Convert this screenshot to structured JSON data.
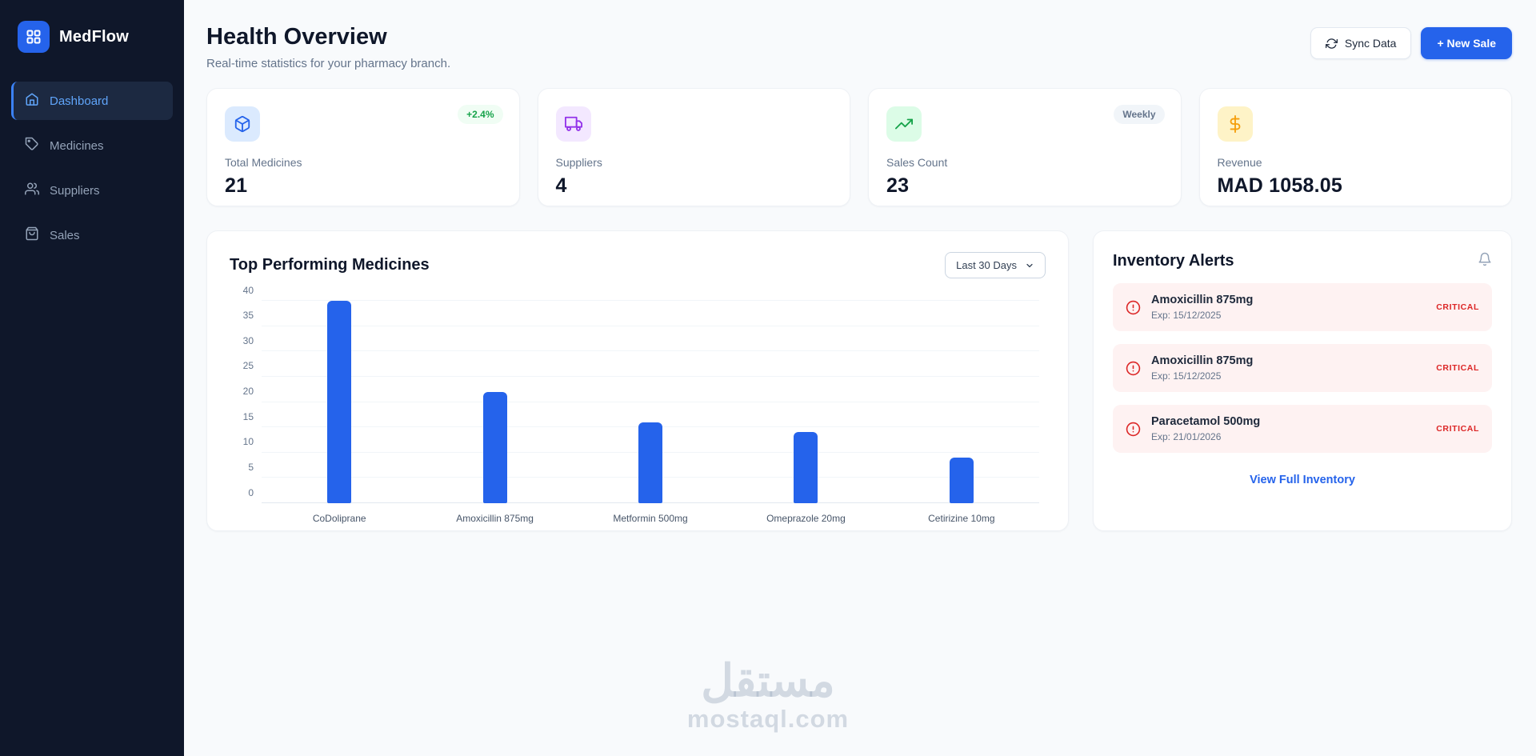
{
  "sidebar": {
    "brand": "MedFlow",
    "items": [
      {
        "label": "Dashboard",
        "icon": "home-icon",
        "active": true
      },
      {
        "label": "Medicines",
        "icon": "tag-icon",
        "active": false
      },
      {
        "label": "Suppliers",
        "icon": "users-icon",
        "active": false
      },
      {
        "label": "Sales",
        "icon": "shopping-bag-icon",
        "active": false
      }
    ]
  },
  "header": {
    "title": "Health Overview",
    "subtitle": "Real-time statistics for your pharmacy branch.",
    "sync_button": "Sync Data",
    "new_sale_button": "+ New Sale"
  },
  "stats": [
    {
      "label": "Total Medicines",
      "value": "21",
      "badge": "+2.4%",
      "icon": "package-icon",
      "accent": "#2563eb"
    },
    {
      "label": "Suppliers",
      "value": "4",
      "badge": "",
      "icon": "truck-icon",
      "accent": "#9333ea"
    },
    {
      "label": "Sales Count",
      "value": "23",
      "badge": "Weekly",
      "icon": "trending-up-icon",
      "accent": "#16a34a"
    },
    {
      "label": "Revenue",
      "value": "MAD 1058.05",
      "badge": "",
      "icon": "dollar-icon",
      "accent": "#f59e0b"
    }
  ],
  "chart": {
    "title": "Top Performing Medicines",
    "range_selector": "Last 30 Days"
  },
  "chart_data": {
    "type": "bar",
    "categories": [
      "CoDoliprane",
      "Amoxicillin 875mg",
      "Metformin 500mg",
      "Omeprazole 20mg",
      "Cetirizine 10mg"
    ],
    "values": [
      40,
      22,
      16,
      14,
      9
    ],
    "title": "Top Performing Medicines",
    "xlabel": "",
    "ylabel": "",
    "ylim": [
      0,
      40
    ],
    "yticks": [
      0,
      5,
      10,
      15,
      20,
      25,
      30,
      35,
      40
    ],
    "bar_color": "#2563eb",
    "grid": true,
    "legend": false
  },
  "alerts": {
    "title": "Inventory Alerts",
    "items": [
      {
        "name": "Amoxicillin 875mg",
        "exp": "Exp: 15/12/2025",
        "status": "CRITICAL"
      },
      {
        "name": "Amoxicillin 875mg",
        "exp": "Exp: 15/12/2025",
        "status": "CRITICAL"
      },
      {
        "name": "Paracetamol 500mg",
        "exp": "Exp: 21/01/2026",
        "status": "CRITICAL"
      }
    ],
    "link": "View Full Inventory"
  },
  "watermark": {
    "arabic": "مستقل",
    "latin": "mostaql.com"
  },
  "colors": {
    "primary": "#2563eb",
    "sidebar_bg": "#0f172a",
    "critical": "#dc2626",
    "background": "#f8fafc"
  }
}
